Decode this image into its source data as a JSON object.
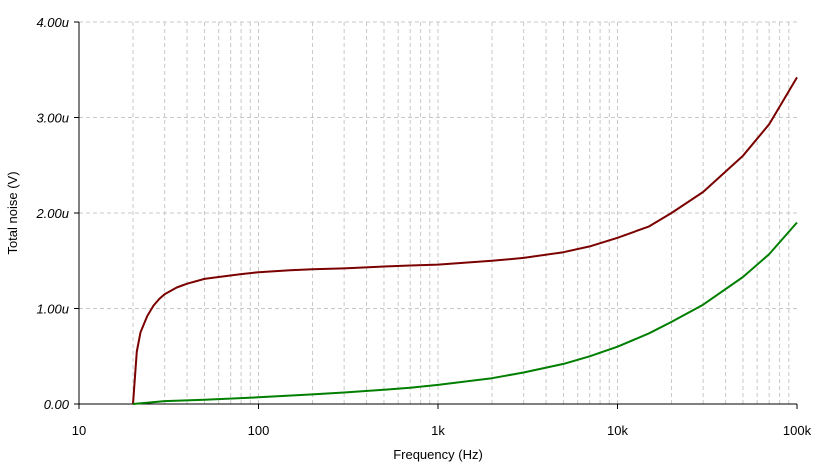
{
  "chart_data": {
    "type": "line",
    "xlabel": "Frequency (Hz)",
    "ylabel": "Total noise (V)",
    "x_scale": "log",
    "xlim": [
      10,
      100000
    ],
    "ylim": [
      0,
      4e-06
    ],
    "x_ticks": [
      10,
      100,
      1000,
      10000,
      100000
    ],
    "x_tick_labels": [
      "10",
      "100",
      "1k",
      "10k",
      "100k"
    ],
    "y_ticks": [
      0,
      1e-06,
      2e-06,
      3e-06,
      4e-06
    ],
    "y_tick_labels": [
      "0.00",
      "1.00u",
      "2.00u",
      "3.00u",
      "4.00u"
    ],
    "grid": true,
    "series": [
      {
        "color": "#7b0000",
        "x": [
          20,
          21,
          22,
          24,
          26,
          28,
          30,
          35,
          40,
          50,
          60,
          80,
          100,
          150,
          200,
          300,
          500,
          700,
          1000,
          2000,
          3000,
          5000,
          7000,
          10000,
          15000,
          20000,
          30000,
          50000,
          70000,
          100000
        ],
        "values": [
          0,
          5.5e-07,
          7.5e-07,
          9.2e-07,
          1.03e-06,
          1.1e-06,
          1.15e-06,
          1.22e-06,
          1.26e-06,
          1.31e-06,
          1.33e-06,
          1.36e-06,
          1.38e-06,
          1.4e-06,
          1.41e-06,
          1.42e-06,
          1.44e-06,
          1.45e-06,
          1.46e-06,
          1.5e-06,
          1.53e-06,
          1.59e-06,
          1.65e-06,
          1.74e-06,
          1.86e-06,
          2e-06,
          2.22e-06,
          2.6e-06,
          2.93e-06,
          3.42e-06
        ]
      },
      {
        "color": "#007f00",
        "x": [
          20,
          30,
          50,
          100,
          200,
          300,
          500,
          700,
          1000,
          2000,
          3000,
          5000,
          7000,
          10000,
          15000,
          20000,
          30000,
          50000,
          70000,
          100000
        ],
        "values": [
          0,
          3e-08,
          4.5e-08,
          7e-08,
          1e-07,
          1.2e-07,
          1.5e-07,
          1.7e-07,
          2e-07,
          2.7e-07,
          3.3e-07,
          4.2e-07,
          5e-07,
          6e-07,
          7.4e-07,
          8.6e-07,
          1.04e-06,
          1.33e-06,
          1.57e-06,
          1.9e-06
        ]
      }
    ]
  }
}
